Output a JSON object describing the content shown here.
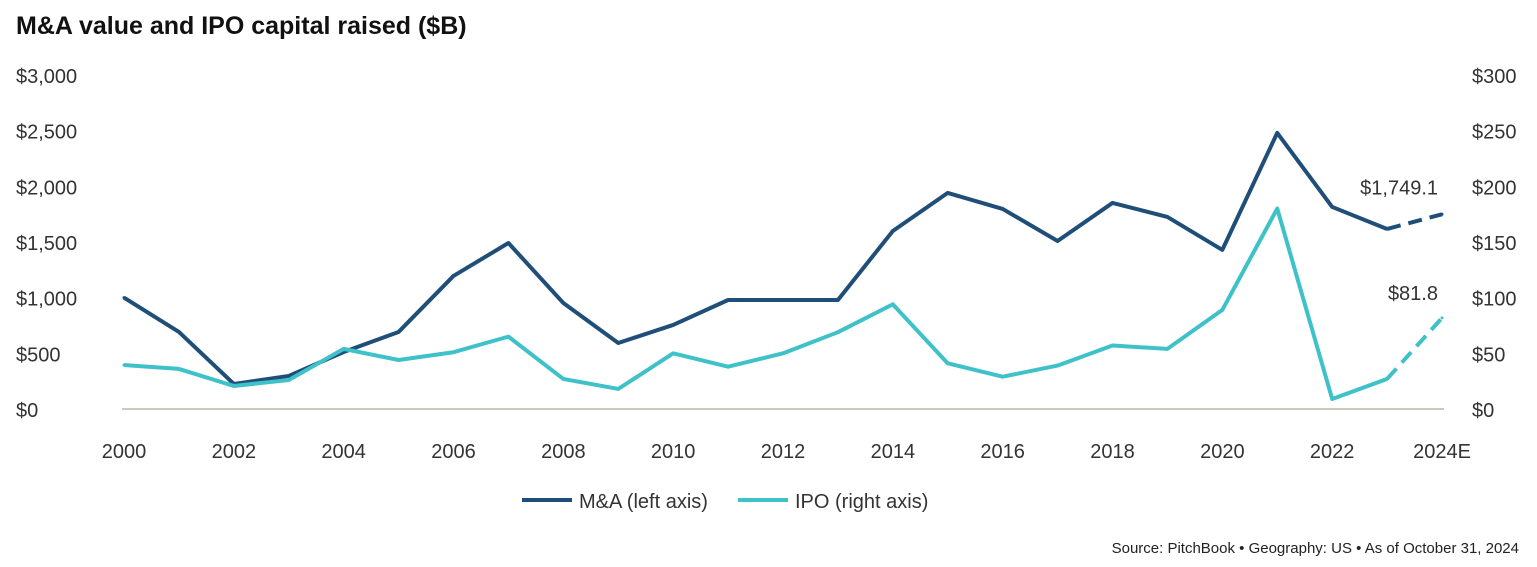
{
  "chart_data": {
    "type": "line",
    "title": "M&A value and IPO capital raised ($B)",
    "source": "Source: PitchBook  •  Geography: US  •  As of October 31, 2024",
    "x": [
      "2000",
      "2001",
      "2002",
      "2003",
      "2004",
      "2005",
      "2006",
      "2007",
      "2008",
      "2009",
      "2010",
      "2011",
      "2012",
      "2013",
      "2014",
      "2015",
      "2016",
      "2017",
      "2018",
      "2019",
      "2020",
      "2021",
      "2022",
      "2023",
      "2024E"
    ],
    "xticks": [
      "2000",
      "2002",
      "2004",
      "2006",
      "2008",
      "2010",
      "2012",
      "2014",
      "2016",
      "2018",
      "2020",
      "2022",
      "2024E"
    ],
    "left_ylim": [
      0,
      3000
    ],
    "left_ticks": [
      "$0",
      "$500",
      "$1,000",
      "$1,500",
      "$2,000",
      "$2,500",
      "$3,000"
    ],
    "right_ylim": [
      0,
      300
    ],
    "right_ticks": [
      "$0",
      "$50",
      "$100",
      "$150",
      "$200",
      "$250",
      "$300"
    ],
    "series": [
      {
        "name": "M&A (left axis)",
        "axis": "left",
        "color": "#1f4e79",
        "values": [
          1000,
          692,
          225,
          297,
          512,
          692,
          1195,
          1491,
          952,
          593,
          755,
          979,
          979,
          979,
          1599,
          1941,
          1797,
          1509,
          1851,
          1725,
          1429,
          2480,
          1815,
          1617,
          1749.1
        ],
        "end_label": "$1,749.1"
      },
      {
        "name": "IPO (right axis)",
        "axis": "right",
        "color": "#3fc1c9",
        "values": [
          39.5,
          36,
          20.7,
          26,
          54,
          44,
          51,
          65,
          27,
          18,
          50,
          38,
          50,
          69,
          94,
          41,
          29,
          39,
          57,
          54,
          89,
          180,
          9,
          27,
          81.8
        ],
        "end_label": "$81.8"
      }
    ],
    "estimate_from": "2023",
    "legend": "bottom"
  }
}
